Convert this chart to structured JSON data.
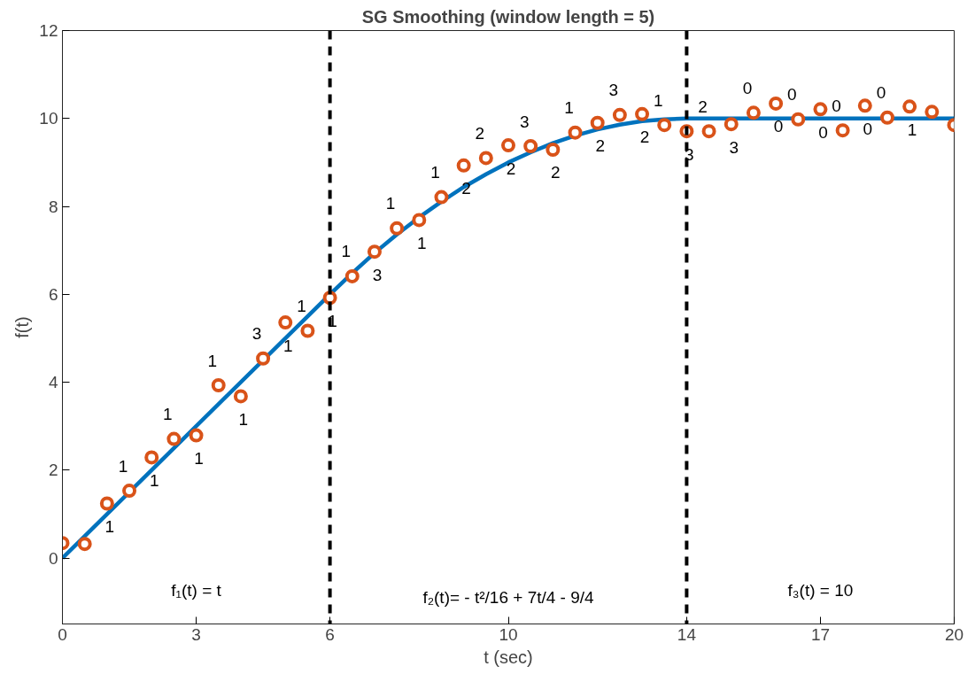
{
  "chart_data": {
    "type": "scatter",
    "title": "SG Smoothing (window length = 5)",
    "xlabel": "t (sec)",
    "ylabel": "f(t)",
    "xlim": [
      0,
      20
    ],
    "ylim": [
      -1.5,
      12
    ],
    "xticks": [
      0,
      3,
      6,
      10,
      14,
      17,
      20
    ],
    "yticks": [
      0,
      2,
      4,
      6,
      8,
      10,
      12
    ],
    "grid": false,
    "series": [
      {
        "type": "line",
        "marker": "none",
        "line_style": "solid",
        "color": "#0072bd",
        "x": [
          0,
          6,
          6.5,
          7,
          7.5,
          8,
          8.5,
          9,
          9.5,
          10,
          10.5,
          11,
          11.5,
          12,
          12.5,
          13,
          13.5,
          14,
          20
        ],
        "values": [
          0,
          6,
          6.48,
          6.94,
          7.36,
          7.75,
          8.11,
          8.44,
          8.73,
          9,
          9.23,
          9.44,
          9.61,
          9.75,
          9.86,
          9.94,
          9.98,
          10,
          10
        ]
      },
      {
        "marker": "circle",
        "color": "#d95319",
        "x": [
          0,
          0.5,
          1,
          1.5,
          2,
          2.5,
          3,
          3.5,
          4,
          4.5,
          5,
          5.5,
          6,
          6.5,
          7,
          7.5,
          8,
          8.5,
          9,
          9.5,
          10,
          10.5,
          11,
          11.5,
          12,
          12.5,
          13,
          13.5,
          14,
          14.5,
          15,
          15.5,
          16,
          16.5,
          17,
          17.5,
          18,
          18.5,
          19,
          19.5,
          20
        ],
        "values": [
          0.34,
          0.32,
          1.24,
          1.53,
          2.29,
          2.71,
          2.79,
          3.93,
          3.68,
          4.54,
          5.36,
          5.17,
          5.92,
          6.41,
          6.97,
          7.5,
          7.69,
          8.21,
          8.93,
          9.1,
          9.39,
          9.37,
          9.29,
          9.68,
          9.9,
          10.08,
          10.1,
          9.85,
          9.71,
          9.71,
          9.87,
          10.13,
          10.34,
          9.98,
          10.21,
          9.73,
          10.29,
          10.02,
          10.27,
          10.15,
          9.85
        ]
      }
    ],
    "ref_lines": [
      {
        "axis": "x",
        "value": 6,
        "color": "#000000",
        "line_style": "dashed"
      },
      {
        "axis": "x",
        "value": 14,
        "color": "#000000",
        "line_style": "dashed"
      }
    ],
    "annotations": [
      "f₁(t) = t",
      "f₂(t)= - t²/16 + 7t/4 - 9/4",
      "f₃(t) = 10",
      {
        "text": "1",
        "x": 1,
        "y": 1.24
      },
      {
        "text": "1",
        "x": 1.5,
        "y": 1.53
      },
      {
        "text": "1",
        "x": 2,
        "y": 2.29
      },
      {
        "text": "1",
        "x": 2.5,
        "y": 2.71
      },
      {
        "text": "1",
        "x": 3,
        "y": 2.79
      },
      {
        "text": "1",
        "x": 3.5,
        "y": 3.93
      },
      {
        "text": "1",
        "x": 4,
        "y": 3.68
      },
      {
        "text": "3",
        "x": 4.5,
        "y": 4.54
      },
      {
        "text": "1",
        "x": 5,
        "y": 5.36
      },
      {
        "text": "1",
        "x": 5.5,
        "y": 5.17
      },
      {
        "text": "1",
        "x": 6,
        "y": 5.92
      },
      {
        "text": "1",
        "x": 6.5,
        "y": 6.41
      },
      {
        "text": "3",
        "x": 7,
        "y": 6.97
      },
      {
        "text": "1",
        "x": 7.5,
        "y": 7.5
      },
      {
        "text": "1",
        "x": 8,
        "y": 7.69
      },
      {
        "text": "1",
        "x": 8.5,
        "y": 8.21
      },
      {
        "text": "2",
        "x": 9,
        "y": 8.93
      },
      {
        "text": "2",
        "x": 9.5,
        "y": 9.1
      },
      {
        "text": "2",
        "x": 10,
        "y": 9.39
      },
      {
        "text": "3",
        "x": 10.5,
        "y": 9.37
      },
      {
        "text": "2",
        "x": 11,
        "y": 9.29
      },
      {
        "text": "1",
        "x": 11.5,
        "y": 9.68
      },
      {
        "text": "2",
        "x": 12,
        "y": 9.9
      },
      {
        "text": "3",
        "x": 12.5,
        "y": 10.08
      },
      {
        "text": "2",
        "x": 13,
        "y": 10.1
      },
      {
        "text": "1",
        "x": 13.5,
        "y": 9.85
      },
      {
        "text": "3",
        "x": 14,
        "y": 9.71
      },
      {
        "text": "2",
        "x": 14.5,
        "y": 9.71
      },
      {
        "text": "3",
        "x": 15,
        "y": 9.87
      },
      {
        "text": "0",
        "x": 15.5,
        "y": 10.13
      },
      {
        "text": "0",
        "x": 16,
        "y": 10.34
      },
      {
        "text": "0",
        "x": 16.5,
        "y": 9.98
      },
      {
        "text": "0",
        "x": 17,
        "y": 10.21
      },
      {
        "text": "0",
        "x": 17.5,
        "y": 9.73
      },
      {
        "text": "0",
        "x": 18,
        "y": 10.29
      },
      {
        "text": "0",
        "x": 18.5,
        "y": 10.02
      },
      {
        "text": "1",
        "x": 19,
        "y": 10.27
      }
    ]
  }
}
